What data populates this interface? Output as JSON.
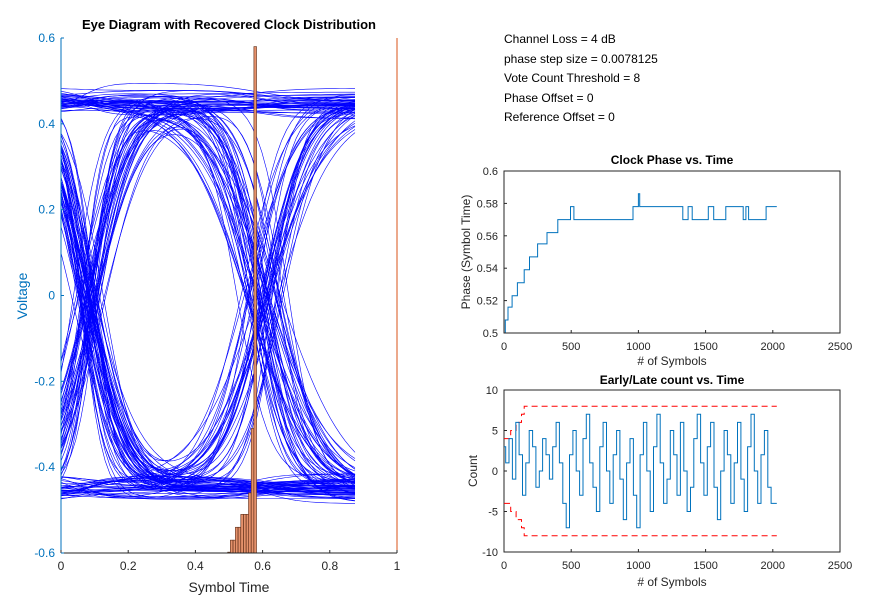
{
  "info_lines": [
    "Channel Loss = 4 dB",
    "phase step size = 0.0078125",
    "Vote Count Threshold = 8",
    "Phase Offset = 0",
    "Reference Offset = 0"
  ],
  "colors": {
    "eye_traces": "#0000ff",
    "axis_blue": "#0072bd",
    "axis_orange": "#d95319",
    "hist_fill": "#e5916b",
    "hist_edge": "#5a2a15",
    "threshold_red": "#ff0000",
    "axis_black": "#262626"
  },
  "chart_data": [
    {
      "id": "eye",
      "type": "line",
      "title": "Eye Diagram with Recovered Clock Distribution",
      "xlabel": "Symbol Time",
      "ylabel": "Voltage",
      "xlim": [
        0,
        1
      ],
      "ylim": [
        -0.6,
        0.6
      ],
      "xticks": [
        "0",
        "0.2",
        "0.4",
        "0.6",
        "0.8",
        "1"
      ],
      "yticks": [
        "-0.6",
        "-0.4",
        "-0.2",
        "0",
        "0.2",
        "0.4",
        "0.6"
      ],
      "trace_span": [
        0,
        0.875
      ],
      "levels": [
        -0.45,
        0.45
      ],
      "histogram": {
        "bin_width": 0.0078125,
        "bins": [
          {
            "x": 0.5,
            "value": 0.002
          },
          {
            "x": 0.508,
            "value": 0.03
          },
          {
            "x": 0.516,
            "value": 0.03
          },
          {
            "x": 0.523,
            "value": 0.06
          },
          {
            "x": 0.531,
            "value": 0.06
          },
          {
            "x": 0.539,
            "value": 0.09
          },
          {
            "x": 0.547,
            "value": 0.09
          },
          {
            "x": 0.555,
            "value": 0.09
          },
          {
            "x": 0.562,
            "value": 0.14
          },
          {
            "x": 0.57,
            "value": 0.29
          },
          {
            "x": 0.578,
            "value": 1.18
          }
        ]
      }
    },
    {
      "id": "phase",
      "type": "line",
      "title": "Clock Phase vs. Time",
      "xlabel": "# of Symbols",
      "ylabel": "Phase (Symbol Time)",
      "xlim": [
        0,
        2500
      ],
      "ylim": [
        0.5,
        0.6
      ],
      "xticks": [
        "0",
        "500",
        "1000",
        "1500",
        "2000",
        "2500"
      ],
      "yticks": [
        "0.5",
        "0.52",
        "0.54",
        "0.56",
        "0.58",
        "0.6"
      ],
      "series": [
        {
          "x": [
            0,
            10,
            30,
            60,
            100,
            150,
            190,
            250,
            320,
            400,
            460,
            495,
            520,
            960,
            1000,
            1010,
            1040,
            1330,
            1370,
            1400,
            1500,
            1520,
            1560,
            1650,
            1670,
            1780,
            1800,
            1820,
            1860,
            1950,
            2030
          ],
          "y": [
            0.5,
            0.508,
            0.516,
            0.523,
            0.531,
            0.539,
            0.547,
            0.555,
            0.562,
            0.57,
            0.57,
            0.578,
            0.57,
            0.578,
            0.586,
            0.578,
            0.578,
            0.57,
            0.578,
            0.57,
            0.57,
            0.578,
            0.57,
            0.578,
            0.578,
            0.57,
            0.578,
            0.57,
            0.57,
            0.578,
            0.578
          ]
        }
      ]
    },
    {
      "id": "count",
      "type": "line",
      "title": "Early/Late count vs. Time",
      "xlabel": "# of Symbols",
      "ylabel": "Count",
      "xlim": [
        0,
        2500
      ],
      "ylim": [
        -10,
        10
      ],
      "xticks": [
        "0",
        "500",
        "1000",
        "1500",
        "2000",
        "2500"
      ],
      "yticks": [
        "-10",
        "-5",
        "0",
        "5",
        "10"
      ],
      "threshold": {
        "x": [
          0,
          20,
          50,
          90,
          130,
          150,
          2030
        ],
        "y": [
          4,
          4,
          5,
          6,
          7,
          8,
          8
        ]
      },
      "series": [
        {
          "x": [
            0,
            25,
            50,
            75,
            100,
            125,
            150,
            175,
            200,
            225,
            250,
            275,
            300,
            325,
            350,
            375,
            400,
            425,
            450,
            475,
            500,
            525,
            550,
            575,
            600,
            625,
            650,
            675,
            700,
            725,
            750,
            775,
            800,
            825,
            850,
            875,
            900,
            925,
            950,
            975,
            1000,
            1025,
            1050,
            1075,
            1100,
            1125,
            1150,
            1175,
            1200,
            1225,
            1250,
            1275,
            1300,
            1325,
            1350,
            1375,
            1400,
            1425,
            1450,
            1475,
            1500,
            1525,
            1550,
            1575,
            1600,
            1625,
            1650,
            1675,
            1700,
            1725,
            1750,
            1775,
            1800,
            1825,
            1850,
            1875,
            1900,
            1925,
            1950,
            1975,
            2000,
            2030
          ],
          "y": [
            3,
            1,
            4,
            -1,
            6,
            2,
            -3,
            1,
            5,
            3,
            -2,
            0,
            4,
            2,
            -1,
            3,
            6,
            1,
            -4,
            -7,
            2,
            5,
            0,
            -3,
            4,
            7,
            1,
            -2,
            -5,
            3,
            6,
            0,
            -4,
            2,
            5,
            -1,
            -6,
            1,
            4,
            -3,
            -7,
            2,
            6,
            0,
            -5,
            3,
            7,
            1,
            -4,
            -1,
            5,
            2,
            -3,
            6,
            0,
            -5,
            -2,
            4,
            7,
            1,
            -3,
            3,
            6,
            -2,
            -6,
            0,
            5,
            2,
            -4,
            1,
            6,
            -1,
            -5,
            3,
            7,
            0,
            -4,
            2,
            5,
            -2,
            -4,
            -4
          ]
        }
      ]
    }
  ]
}
